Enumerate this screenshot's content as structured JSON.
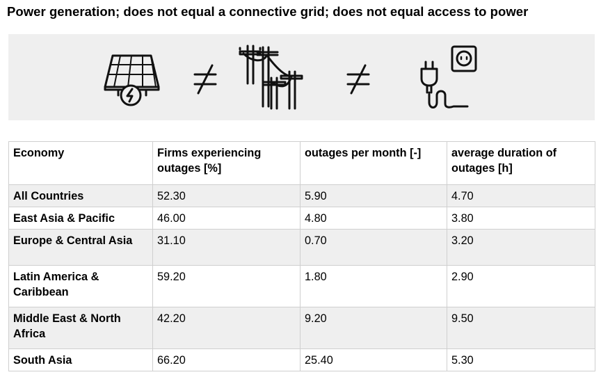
{
  "title": "Power generation; does not equal a connective grid; does not equal access to power",
  "banner": {
    "icons": [
      "solar-panel-icon",
      "not-equal-icon",
      "power-lines-icon",
      "not-equal-icon",
      "plug-socket-icon"
    ]
  },
  "table": {
    "headers": [
      "Economy",
      "Firms experiencing outages [%]",
      "outages per month [-]",
      "average duration of outages [h]"
    ],
    "rows": [
      [
        "All Countries",
        "52.30",
        "5.90",
        "4.70"
      ],
      [
        "East Asia & Pacific",
        "46.00",
        "4.80",
        "3.80"
      ],
      [
        "Europe & Central Asia",
        "31.10",
        "0.70",
        "3.20"
      ],
      [
        "Latin America & Caribbean",
        "59.20",
        "1.80",
        "2.90"
      ],
      [
        "Middle East & North Africa",
        "42.20",
        "9.20",
        "9.50"
      ],
      [
        "South Asia",
        "66.20",
        "25.40",
        "5.30"
      ]
    ]
  }
}
